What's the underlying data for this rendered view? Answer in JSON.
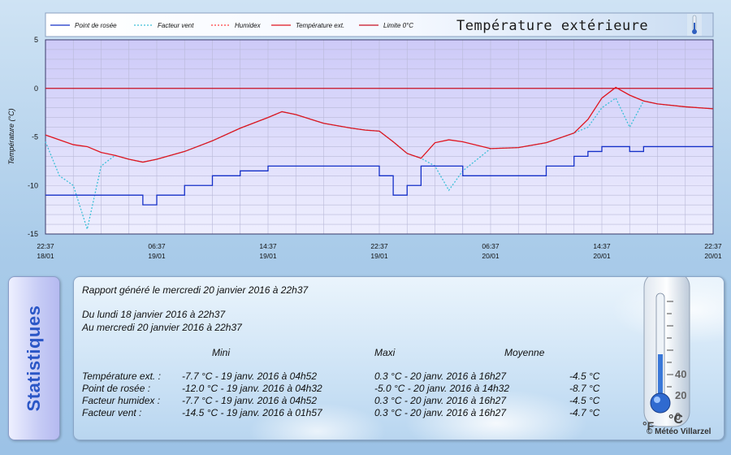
{
  "chart_data": {
    "type": "line",
    "title": "Température extérieure",
    "ylabel": "Température (°C)",
    "ylim": [
      -15,
      5
    ],
    "yticks": [
      -15,
      -10,
      -5,
      0,
      5
    ],
    "xlim": [
      "2016-01-18 22:37",
      "2016-01-20 22:37"
    ],
    "xticks": [
      {
        "time": "22:37",
        "date": "18/01"
      },
      {
        "time": "06:37",
        "date": "19/01"
      },
      {
        "time": "14:37",
        "date": "19/01"
      },
      {
        "time": "22:37",
        "date": "19/01"
      },
      {
        "time": "06:37",
        "date": "20/01"
      },
      {
        "time": "14:37",
        "date": "20/01"
      },
      {
        "time": "22:37",
        "date": "20/01"
      }
    ],
    "legend": [
      "Point de rosée",
      "Facteur vent",
      "Humidex",
      "Température ext.",
      "Limite 0°C"
    ],
    "colors": {
      "temperature": "#e0141e",
      "dewpoint": "#1530c8",
      "wind": "#3cc0d8",
      "humidex": "#ff4040",
      "limit": "#c81020"
    },
    "x_hours": [
      0,
      1,
      2,
      3,
      4,
      5,
      6,
      7,
      8,
      10,
      12,
      14,
      16,
      17,
      18,
      20,
      22,
      23,
      24,
      25,
      26,
      27,
      28,
      29,
      30,
      32,
      34,
      36,
      38,
      39,
      40,
      41,
      42,
      43,
      44,
      46,
      48
    ],
    "series": [
      {
        "name": "Température ext.",
        "values": [
          -4.8,
          -5.3,
          -5.8,
          -6.0,
          -6.6,
          -6.9,
          -7.3,
          -7.6,
          -7.3,
          -6.5,
          -5.4,
          -4.1,
          -3.0,
          -2.4,
          -2.7,
          -3.6,
          -4.1,
          -4.3,
          -4.4,
          -5.5,
          -6.7,
          -7.2,
          -5.6,
          -5.3,
          -5.5,
          -6.2,
          -6.1,
          -5.6,
          -4.6,
          -3.2,
          -1.0,
          0.1,
          -0.7,
          -1.3,
          -1.6,
          -1.9,
          -2.1
        ]
      },
      {
        "name": "Point de rosée",
        "values": [
          -11,
          -11,
          -11,
          -11,
          -11,
          -11,
          -11,
          -12,
          -11,
          -10,
          -9,
          -8.5,
          -8,
          -8,
          -8,
          -8,
          -8,
          -8,
          -9,
          -11,
          -10,
          -8,
          -8,
          -8,
          -9,
          -9,
          -9,
          -8,
          -7,
          -6.5,
          -6,
          -6,
          -6.5,
          -6,
          -6,
          -6,
          -6
        ]
      },
      {
        "name": "Facteur vent",
        "values": [
          -5.5,
          -9.0,
          -10.0,
          -14.5,
          -8.0,
          -6.9,
          -7.3,
          -7.6,
          -7.3,
          -6.5,
          -5.4,
          -4.1,
          -3.0,
          -2.4,
          -2.7,
          -3.6,
          -4.1,
          -4.3,
          -4.4,
          -5.5,
          -6.7,
          -7.2,
          -8.0,
          -10.5,
          -8.5,
          -6.2,
          -6.1,
          -5.6,
          -4.6,
          -4.0,
          -2.0,
          -1.0,
          -4.0,
          -1.3,
          -1.6,
          -1.9,
          -2.1
        ]
      }
    ],
    "limit_value": 0
  },
  "stats": {
    "tab_label": "Statistiques",
    "report": "Rapport généré le mercredi 20 janvier 2016 à 22h37",
    "from": "Du lundi 18 janvier 2016 à 22h37",
    "to": "Au mercredi 20 janvier 2016 à 22h37",
    "headers": {
      "mini": "Mini",
      "maxi": "Maxi",
      "moyenne": "Moyenne"
    },
    "rows": [
      {
        "label": "Température ext. :",
        "mini": "-7.7 °C - 19 janv. 2016 à 04h52",
        "maxi": "0.3 °C - 20 janv. 2016 à 16h27",
        "moyenne": "-4.5 °C"
      },
      {
        "label": "Point de rosée :",
        "mini": "-12.0 °C - 19 janv. 2016 à 04h32",
        "maxi": "-5.0 °C - 20 janv. 2016 à 14h32",
        "moyenne": "-8.7 °C"
      },
      {
        "label": "Facteur humidex :",
        "mini": "-7.7 °C - 19 janv. 2016 à 04h52",
        "maxi": "0.3 °C - 20 janv. 2016 à 16h27",
        "moyenne": "-4.5 °C"
      },
      {
        "label": "Facteur vent :",
        "mini": "-14.5 °C - 19 janv. 2016 à 01h57",
        "maxi": "0.3 °C - 20 janv. 2016 à 16h27",
        "moyenne": "-4.7 °C"
      }
    ],
    "copyright": "© Météo Villarzel",
    "thermo_units": [
      "°F",
      "°C"
    ],
    "thermo_ticks": [
      "40",
      "20",
      "0"
    ]
  }
}
